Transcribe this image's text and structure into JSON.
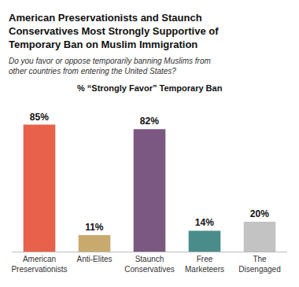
{
  "chart_data": {
    "type": "bar",
    "title": "American Preservationists and Staunch\nConservatives Most Strongly Supportive of\nTemporary Ban on Muslim Immigration",
    "subtitle": "Do you favor or oppose temporarily banning Muslims from\nother countries from entering the United States?",
    "annotations": [
      "% “Strongly Favor” Temporary Ban"
    ],
    "categories": [
      "American\nPreservationists",
      "Anti-Elites",
      "Staunch\nConservatives",
      "Free\nMarketeers",
      "The\nDisengaged"
    ],
    "values": [
      85,
      11,
      82,
      14,
      20
    ],
    "value_labels": [
      "85%",
      "11%",
      "82%",
      "14%",
      "20%"
    ],
    "data_labels": true,
    "colors": [
      "#E8614A",
      "#C9AA6E",
      "#7B5882",
      "#4A8C8A",
      "#C4C3C3"
    ],
    "ylim": [
      0,
      100
    ],
    "yticks": [],
    "grid": false,
    "tick_labels": "x"
  }
}
